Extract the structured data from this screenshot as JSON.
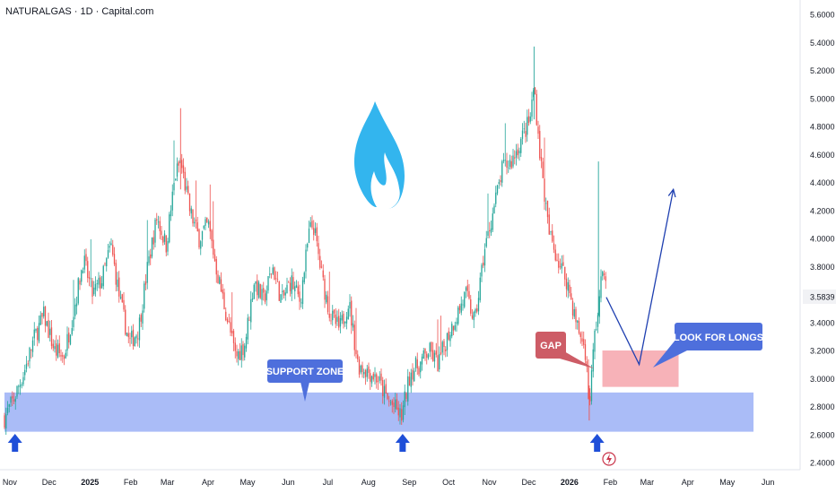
{
  "chart_data": {
    "type": "candlestick",
    "title": "NATURALGAS · 1D · Capital.com",
    "x_ticks": [
      "Nov",
      "Dec",
      "2025",
      "Feb",
      "Mar",
      "Apr",
      "May",
      "Jun",
      "Jul",
      "Aug",
      "Sep",
      "Oct",
      "Nov",
      "Dec",
      "2026",
      "Feb",
      "Mar",
      "Apr",
      "May",
      "Jun"
    ],
    "x_tick_years": [
      "2025",
      "2026"
    ],
    "y_ticks": [
      "5.6000",
      "5.4000",
      "5.2000",
      "5.0000",
      "4.8000",
      "4.6000",
      "4.4000",
      "4.2000",
      "4.0000",
      "3.8000",
      "3.6000",
      "3.4000",
      "3.2000",
      "3.0000",
      "2.8000",
      "2.6000",
      "2.4000"
    ],
    "ylim": [
      2.38,
      5.62
    ],
    "last_price": "3.5839",
    "price_path": [
      [
        "2024-10-28",
        2.72
      ],
      [
        "2024-11-04",
        2.85
      ],
      [
        "2024-11-12",
        3.05
      ],
      [
        "2024-11-20",
        3.3
      ],
      [
        "2024-11-27",
        3.45
      ],
      [
        "2024-12-05",
        3.2
      ],
      [
        "2024-12-12",
        3.15
      ],
      [
        "2024-12-20",
        3.5
      ],
      [
        "2024-12-27",
        3.85
      ],
      [
        "2025-01-03",
        3.6
      ],
      [
        "2025-01-10",
        3.7
      ],
      [
        "2025-01-17",
        3.95
      ],
      [
        "2025-01-24",
        3.55
      ],
      [
        "2025-01-31",
        3.25
      ],
      [
        "2025-02-07",
        3.35
      ],
      [
        "2025-02-14",
        3.8
      ],
      [
        "2025-02-21",
        4.15
      ],
      [
        "2025-02-28",
        3.95
      ],
      [
        "2025-03-07",
        4.45
      ],
      [
        "2025-03-11",
        4.55
      ],
      [
        "2025-03-18",
        4.2
      ],
      [
        "2025-03-25",
        4.0
      ],
      [
        "2025-04-01",
        4.1
      ],
      [
        "2025-04-08",
        3.75
      ],
      [
        "2025-04-15",
        3.45
      ],
      [
        "2025-04-22",
        3.15
      ],
      [
        "2025-04-29",
        3.25
      ],
      [
        "2025-05-06",
        3.7
      ],
      [
        "2025-05-13",
        3.55
      ],
      [
        "2025-05-20",
        3.8
      ],
      [
        "2025-05-27",
        3.55
      ],
      [
        "2025-06-03",
        3.7
      ],
      [
        "2025-06-10",
        3.55
      ],
      [
        "2025-06-17",
        4.05
      ],
      [
        "2025-06-20",
        4.1
      ],
      [
        "2025-06-27",
        3.7
      ],
      [
        "2025-07-03",
        3.45
      ],
      [
        "2025-07-10",
        3.35
      ],
      [
        "2025-07-17",
        3.55
      ],
      [
        "2025-07-24",
        3.1
      ],
      [
        "2025-08-01",
        3.05
      ],
      [
        "2025-08-08",
        3.0
      ],
      [
        "2025-08-15",
        2.85
      ],
      [
        "2025-08-22",
        2.78
      ],
      [
        "2025-08-26",
        2.72
      ],
      [
        "2025-09-02",
        3.05
      ],
      [
        "2025-09-09",
        3.1
      ],
      [
        "2025-09-16",
        3.2
      ],
      [
        "2025-09-23",
        3.1
      ],
      [
        "2025-09-30",
        3.3
      ],
      [
        "2025-10-07",
        3.45
      ],
      [
        "2025-10-14",
        3.6
      ],
      [
        "2025-10-21",
        3.4
      ],
      [
        "2025-10-28",
        3.9
      ],
      [
        "2025-11-04",
        4.2
      ],
      [
        "2025-11-11",
        4.5
      ],
      [
        "2025-11-18",
        4.55
      ],
      [
        "2025-11-25",
        4.7
      ],
      [
        "2025-12-02",
        4.85
      ],
      [
        "2025-12-05",
        5.1
      ],
      [
        "2025-12-09",
        4.65
      ],
      [
        "2025-12-16",
        4.05
      ],
      [
        "2025-12-23",
        3.85
      ],
      [
        "2025-12-30",
        3.7
      ],
      [
        "2026-01-06",
        3.4
      ],
      [
        "2026-01-13",
        3.2
      ],
      [
        "2026-01-16",
        2.8
      ],
      [
        "2026-01-20",
        3.3
      ],
      [
        "2026-01-23",
        3.5
      ],
      [
        "2026-01-27",
        3.85
      ],
      [
        "2026-01-29",
        3.58
      ]
    ],
    "zones": [
      {
        "label": "SUPPORT ZONE",
        "from_date": "2024-10-28",
        "to_date": "2026-05-21",
        "low": 2.62,
        "high": 2.9,
        "color": "#a5b8f7"
      },
      {
        "label": "",
        "from_date": "2026-01-26",
        "to_date": "2026-03-25",
        "low": 2.94,
        "high": 3.2,
        "color": "#f7aeb4"
      }
    ],
    "annotations": {
      "support_label": "SUPPORT ZONE",
      "gap_label": "GAP",
      "longs_label": "LOOK FOR LONGS",
      "projection": [
        [
          "2026-01-29",
          3.58
        ],
        [
          "2026-02-23",
          3.1
        ],
        [
          "2026-03-21",
          4.35
        ]
      ],
      "support_arrows_at": [
        "2024-11-05",
        "2025-08-27",
        "2026-01-22"
      ]
    },
    "grid": false,
    "colors": {
      "up": "#26a69a",
      "down": "#ef5350",
      "support_zone": "#a5b8f7",
      "gap_zone": "#f7aeb4",
      "label_blue": "#4e6fdc",
      "label_red": "#cd5c66",
      "projection": "#1e3fb0",
      "arrow": "#1f4fd8",
      "flame": "#33b5ee",
      "last_price_bg": "#f1f2f5"
    }
  },
  "icons": {
    "flame": "flame-icon",
    "event": "lightning-icon"
  }
}
